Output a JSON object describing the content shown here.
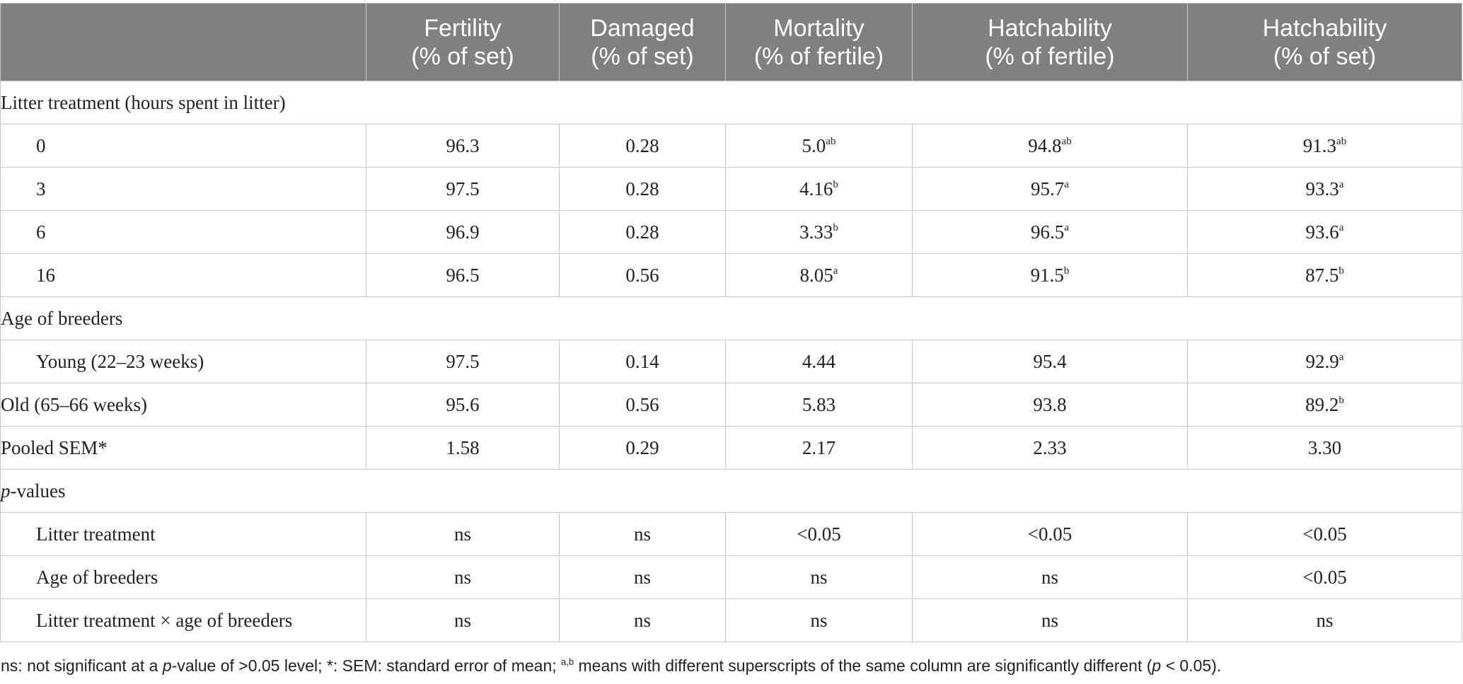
{
  "table": {
    "headers": [
      {
        "line1": "",
        "line2": ""
      },
      {
        "line1": "Fertility",
        "line2": "(% of set)"
      },
      {
        "line1": "Damaged",
        "line2": "(% of set)"
      },
      {
        "line1": "Mortality",
        "line2": "(% of fertile)"
      },
      {
        "line1": "Hatchability",
        "line2": "(% of fertile)"
      },
      {
        "line1": "Hatchability",
        "line2": "(% of set)"
      }
    ],
    "sections": {
      "litter": {
        "title": "Litter treatment (hours spent in litter)",
        "rows": [
          {
            "label": "0",
            "fertility": "96.3",
            "damaged": "0.28",
            "mortality": "5.0",
            "mortality_sup": "ab",
            "hatch_fertile": "94.8",
            "hatch_fertile_sup": "ab",
            "hatch_set": "91.3",
            "hatch_set_sup": "ab"
          },
          {
            "label": "3",
            "fertility": "97.5",
            "damaged": "0.28",
            "mortality": "4.16",
            "mortality_sup": "b",
            "hatch_fertile": "95.7",
            "hatch_fertile_sup": "a",
            "hatch_set": "93.3",
            "hatch_set_sup": "a"
          },
          {
            "label": "6",
            "fertility": "96.9",
            "damaged": "0.28",
            "mortality": "3.33",
            "mortality_sup": "b",
            "hatch_fertile": "96.5",
            "hatch_fertile_sup": "a",
            "hatch_set": "93.6",
            "hatch_set_sup": "a"
          },
          {
            "label": "16",
            "fertility": "96.5",
            "damaged": "0.56",
            "mortality": "8.05",
            "mortality_sup": "a",
            "hatch_fertile": "91.5",
            "hatch_fertile_sup": "b",
            "hatch_set": "87.5",
            "hatch_set_sup": "b"
          }
        ]
      },
      "age": {
        "title": "Age of breeders",
        "young": {
          "label": "Young (22–23 weeks)",
          "fertility": "97.5",
          "damaged": "0.14",
          "mortality": "4.44",
          "hatch_fertile": "95.4",
          "hatch_set": "92.9",
          "hatch_set_sup": "a"
        },
        "old": {
          "label": "Old (65–66 weeks)",
          "fertility": "95.6",
          "damaged": "0.56",
          "mortality": "5.83",
          "hatch_fertile": "93.8",
          "hatch_set": "89.2",
          "hatch_set_sup": "b"
        }
      },
      "sem": {
        "label": "Pooled SEM*",
        "fertility": "1.58",
        "damaged": "0.29",
        "mortality": "2.17",
        "hatch_fertile": "2.33",
        "hatch_set": "3.30"
      },
      "pvalues": {
        "title_italic": "p",
        "title_rest": "-values",
        "rows": [
          {
            "label": "Litter treatment",
            "fertility": "ns",
            "damaged": "ns",
            "mortality": "<0.05",
            "hatch_fertile": "<0.05",
            "hatch_set": "<0.05"
          },
          {
            "label": "Age of breeders",
            "fertility": "ns",
            "damaged": "ns",
            "mortality": "ns",
            "hatch_fertile": "ns",
            "hatch_set": "<0.05"
          },
          {
            "label": "Litter treatment × age of breeders",
            "fertility": "ns",
            "damaged": "ns",
            "mortality": "ns",
            "hatch_fertile": "ns",
            "hatch_set": "ns"
          }
        ]
      }
    }
  },
  "footnote": {
    "part1": "ns: not significant at a ",
    "italic_p": "p",
    "part2": "-value of >0.05 level; *: SEM: standard error of mean; ",
    "sup": "a,b",
    "part3": " means with different superscripts of the same column are significantly different (",
    "italic_p2": "p",
    "part4": " < 0.05)."
  }
}
